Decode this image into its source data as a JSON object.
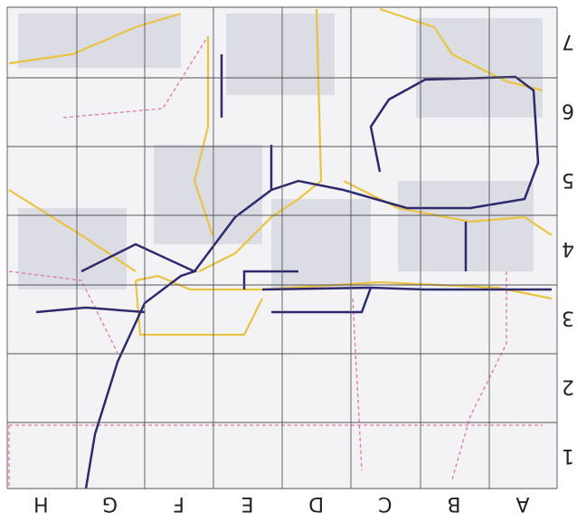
{
  "grid": {
    "columns": [
      "A",
      "B",
      "C",
      "D",
      "E",
      "F",
      "G",
      "H"
    ],
    "rows": [
      "1",
      "2",
      "3",
      "4",
      "5",
      "6",
      "7"
    ]
  }
}
